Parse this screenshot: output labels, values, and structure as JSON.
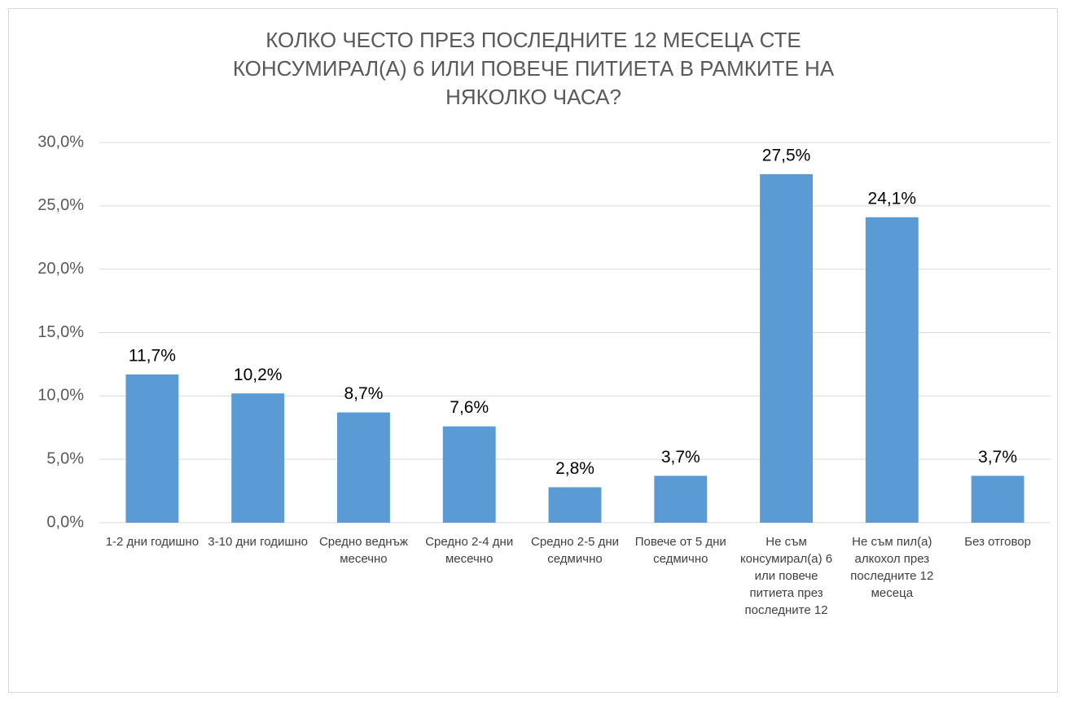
{
  "chart_data": {
    "type": "bar",
    "title": [
      "КОЛКО ЧЕСТО ПРЕЗ ПОСЛЕДНИТЕ 12 МЕСЕЦА СТЕ",
      "КОНСУМИРАЛ(А) 6 ИЛИ ПОВЕЧЕ ПИТИЕТА В РАМКИТЕ НА",
      "НЯКОЛКО ЧАСА?"
    ],
    "categories": [
      "1-2 дни годишно",
      "3-10 дни годишно",
      "Средно веднъж месечно",
      "Средно 2-4 дни месечно",
      "Средно 2-5 дни седмично",
      "Повече от 5 дни седмично",
      "Не съм консумирал(а) 6 или повече питиета през последните 12",
      "Не съм пил(а) алкохол през последните 12 месеца",
      "Без отговор"
    ],
    "values": [
      11.7,
      10.2,
      8.7,
      7.6,
      2.8,
      3.7,
      27.5,
      24.1,
      3.7
    ],
    "value_labels": [
      "11,7%",
      "10,2%",
      "8,7%",
      "7,6%",
      "2,8%",
      "3,7%",
      "27,5%",
      "24,1%",
      "3,7%"
    ],
    "color": "#5b9bd5",
    "ylim": [
      0,
      30
    ],
    "yticks": [
      {
        "value": 0,
        "label": "0,0%"
      },
      {
        "value": 5,
        "label": "5,0%"
      },
      {
        "value": 10,
        "label": "10,0%"
      },
      {
        "value": 15,
        "label": "15,0%"
      },
      {
        "value": 20,
        "label": "20,0%"
      },
      {
        "value": 25,
        "label": "25,0%"
      },
      {
        "value": 30,
        "label": "30,0%"
      }
    ],
    "grid": true
  }
}
